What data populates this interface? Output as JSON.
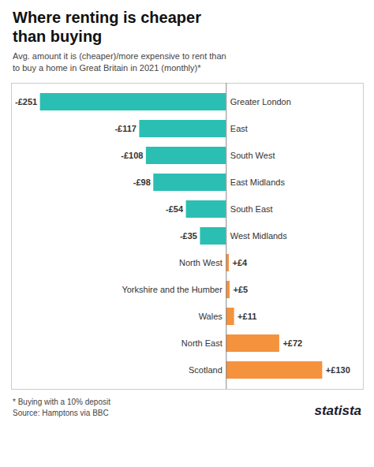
{
  "chart_data": {
    "type": "bar",
    "orientation": "horizontal",
    "title": "Where renting is cheaper\nthan buying",
    "subtitle": "Avg. amount it is (cheaper)/more expensive to rent than\nto buy a home in Great Britain in 2021 (monthly)*",
    "caption": "* Buying with a 10% deposit\nSource: Hamptons via BBC",
    "annotations": [
      "statista"
    ],
    "categories": [
      "Scotland",
      "North East",
      "Wales",
      "Yorkshire and the Humber",
      "North West",
      "West Midlands",
      "South East",
      "East Midlands",
      "South West",
      "East",
      "Greater London"
    ],
    "values": [
      130,
      72,
      11,
      5,
      4,
      -35,
      -54,
      -98,
      -108,
      -117,
      -251
    ],
    "value_labels": [
      "+£130",
      "+£72",
      "+£11",
      "+£5",
      "+£4",
      "-£35",
      "-£54",
      "-£98",
      "-£108",
      "-£117",
      "-£251"
    ],
    "colors": [
      "#F5923E",
      "#F5923E",
      "#F5923E",
      "#F5923E",
      "#F5923E",
      "#2BBFB3",
      "#2BBFB3",
      "#2BBFB3",
      "#2BBFB3",
      "#2BBFB3",
      "#2BBFB3"
    ],
    "xlim": [
      -290,
      185
    ],
    "data_labels": true,
    "tick_labels": "y",
    "grid": false
  }
}
